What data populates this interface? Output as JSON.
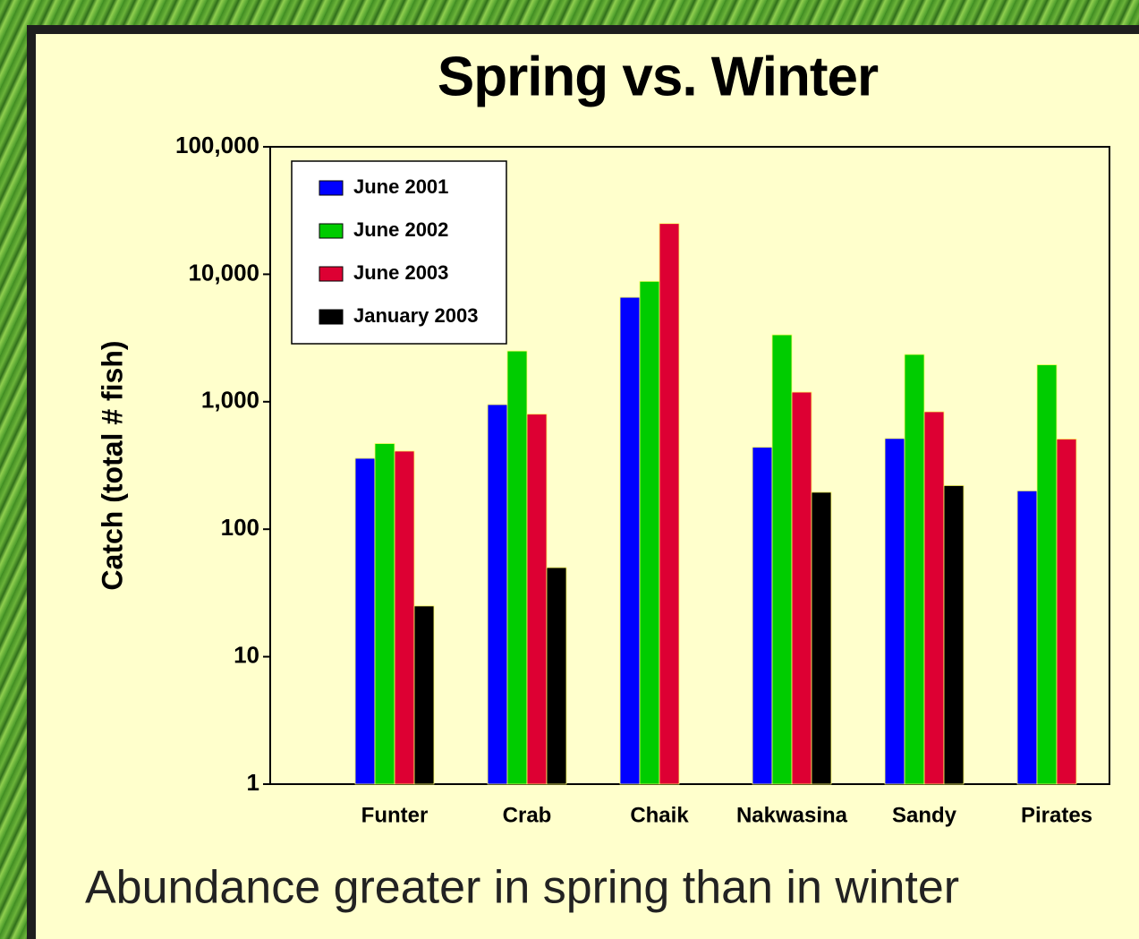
{
  "chart_data": {
    "type": "bar",
    "title": "Spring vs. Winter",
    "ylabel": "Catch (total # fish)",
    "annotation": "Abundance greater in spring than in winter",
    "categories": [
      "Funter",
      "Crab",
      "Chaik",
      "Nakwasina",
      "Sandy",
      "Pirates"
    ],
    "series": [
      {
        "name": "June 2001",
        "color": "#0000ff",
        "values": [
          360,
          950,
          6600,
          440,
          515,
          200
        ]
      },
      {
        "name": "June 2002",
        "color": "#00cc00",
        "values": [
          470,
          2500,
          8800,
          3350,
          2350,
          1950
        ]
      },
      {
        "name": "June 2003",
        "color": "#dd0033",
        "values": [
          410,
          800,
          25000,
          1190,
          835,
          510
        ]
      },
      {
        "name": "January 2003",
        "color": "#000000",
        "values": [
          25,
          50,
          null,
          195,
          220,
          null
        ]
      }
    ],
    "log_scale": true,
    "ylim": [
      1,
      100000
    ],
    "yticks": [
      1,
      10,
      100,
      {
        "value": 1000,
        "label": "1,000"
      },
      {
        "value": 10000,
        "label": "10,000"
      },
      {
        "value": 100000,
        "label": "100,000"
      }
    ],
    "legend": "upper left"
  }
}
